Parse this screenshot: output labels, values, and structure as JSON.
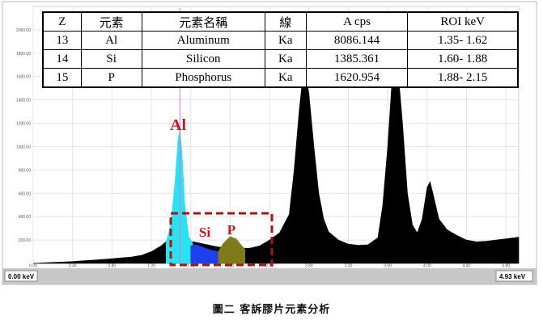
{
  "table": {
    "headers": [
      "Z",
      "元素",
      "元素名稱",
      "線",
      "A cps",
      "ROI keV"
    ],
    "rows": [
      [
        "13",
        "Al",
        "Aluminum",
        "Ka",
        "8086.144",
        "1.35- 1.62"
      ],
      [
        "14",
        "Si",
        "Silicon",
        "Ka",
        "1385.361",
        "1.60- 1.88"
      ],
      [
        "15",
        "P",
        "Phosphorus",
        "Ka",
        "1620.954",
        "1.88- 2.15"
      ]
    ]
  },
  "chart_data": {
    "type": "area",
    "xlim": [
      0.0,
      4.93
    ],
    "ylim": [
      0,
      2200
    ],
    "x_ticks": [
      "0.00",
      "0.40",
      "0.80",
      "1.20",
      "1.60",
      "2.00",
      "2.40",
      "2.80",
      "3.20",
      "3.60",
      "4.00",
      "4.40",
      "4.80"
    ],
    "y_ticks": [
      "200.00",
      "400.00",
      "600.00",
      "800.00",
      "1000.00",
      "1200.00",
      "1400.00",
      "1600.00",
      "1800.00",
      "2000.00"
    ],
    "marker_x": 1.49,
    "annotations": [
      "Al",
      "Si",
      "P"
    ],
    "status_left": "0.00 keV",
    "status_right": "4.93 keV",
    "series": [
      {
        "name": "spectrum",
        "color": "#000000",
        "points": [
          [
            0.0,
            0
          ],
          [
            0.1,
            5
          ],
          [
            0.2,
            8
          ],
          [
            0.3,
            12
          ],
          [
            0.4,
            16
          ],
          [
            0.5,
            22
          ],
          [
            0.6,
            28
          ],
          [
            0.7,
            34
          ],
          [
            0.8,
            40
          ],
          [
            0.9,
            48
          ],
          [
            1.0,
            55
          ],
          [
            1.1,
            70
          ],
          [
            1.2,
            100
          ],
          [
            1.3,
            150
          ],
          [
            1.34,
            180
          ],
          [
            1.35,
            185
          ],
          [
            1.62,
            185
          ],
          [
            1.63,
            185
          ],
          [
            1.88,
            140
          ],
          [
            2.15,
            130
          ],
          [
            2.2,
            130
          ],
          [
            2.3,
            150
          ],
          [
            2.4,
            200
          ],
          [
            2.5,
            260
          ],
          [
            2.6,
            420
          ],
          [
            2.65,
            800
          ],
          [
            2.7,
            1300
          ],
          [
            2.75,
            1700
          ],
          [
            2.8,
            1450
          ],
          [
            2.85,
            1000
          ],
          [
            2.9,
            600
          ],
          [
            2.95,
            380
          ],
          [
            3.0,
            270
          ],
          [
            3.1,
            200
          ],
          [
            3.2,
            165
          ],
          [
            3.3,
            155
          ],
          [
            3.4,
            160
          ],
          [
            3.5,
            220
          ],
          [
            3.55,
            500
          ],
          [
            3.6,
            1000
          ],
          [
            3.65,
            1650
          ],
          [
            3.7,
            1700
          ],
          [
            3.75,
            1200
          ],
          [
            3.8,
            600
          ],
          [
            3.85,
            330
          ],
          [
            3.9,
            260
          ],
          [
            3.95,
            380
          ],
          [
            4.0,
            650
          ],
          [
            4.03,
            700
          ],
          [
            4.07,
            560
          ],
          [
            4.12,
            380
          ],
          [
            4.2,
            290
          ],
          [
            4.3,
            240
          ],
          [
            4.4,
            200
          ],
          [
            4.5,
            185
          ],
          [
            4.6,
            190
          ],
          [
            4.7,
            200
          ],
          [
            4.8,
            210
          ],
          [
            4.93,
            225
          ]
        ]
      },
      {
        "name": "Al",
        "color": "#29e3f0",
        "points": [
          [
            1.35,
            180
          ],
          [
            1.4,
            350
          ],
          [
            1.44,
            700
          ],
          [
            1.47,
            1050
          ],
          [
            1.49,
            1150
          ],
          [
            1.51,
            950
          ],
          [
            1.54,
            500
          ],
          [
            1.58,
            230
          ],
          [
            1.62,
            170
          ]
        ]
      },
      {
        "name": "Si",
        "color": "#1e3ff0",
        "points": [
          [
            1.6,
            150
          ],
          [
            1.66,
            160
          ],
          [
            1.72,
            140
          ],
          [
            1.8,
            115
          ],
          [
            1.88,
            100
          ]
        ]
      },
      {
        "name": "P",
        "color": "#7f7a1a",
        "points": [
          [
            1.88,
            100
          ],
          [
            1.93,
            170
          ],
          [
            2.0,
            230
          ],
          [
            2.06,
            210
          ],
          [
            2.12,
            150
          ],
          [
            2.15,
            120
          ]
        ]
      }
    ]
  },
  "caption": "圖二  客訴膠片元素分析"
}
